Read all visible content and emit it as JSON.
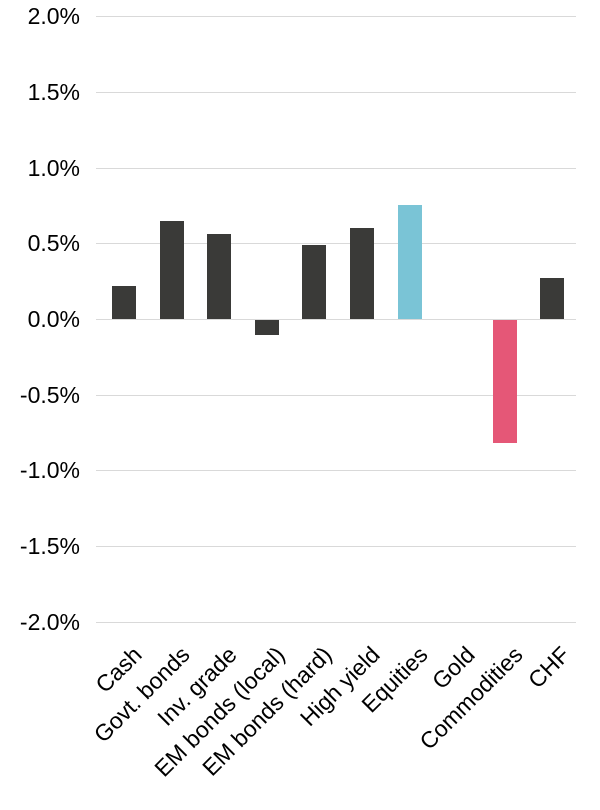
{
  "chart_data": {
    "type": "bar",
    "title": "",
    "xlabel": "",
    "ylabel": "",
    "categories": [
      "Cash",
      "Govt. bonds",
      "Inv. grade",
      "EM bonds (local)",
      "EM bonds (hard)",
      "High yield",
      "Equities",
      "Gold",
      "Commodities",
      "CHF"
    ],
    "values": [
      0.22,
      0.65,
      0.56,
      -0.1,
      0.49,
      0.6,
      0.75,
      0.0,
      -0.81,
      0.27
    ],
    "value_unit": "%",
    "ylim": [
      -2.0,
      2.0
    ],
    "yticks": [
      2.0,
      1.5,
      1.0,
      0.5,
      0.0,
      -0.5,
      -1.0,
      -1.5,
      -2.0
    ],
    "ytick_labels": [
      "2.0%",
      "1.5%",
      "1.0%",
      "0.5%",
      "0.0%",
      "-0.5%",
      "-1.0%",
      "-1.5%",
      "-2.0%"
    ],
    "grid": "horizontal",
    "legend": "none",
    "bar_colors": [
      "#3a3a38",
      "#3a3a38",
      "#3a3a38",
      "#3a3a38",
      "#3a3a38",
      "#3a3a38",
      "#7ac4d6",
      "#3a3a38",
      "#e55777",
      "#3a3a38"
    ],
    "colors": {
      "bar_default": "#3a3a38",
      "bar_highlight_positive": "#7ac4d6",
      "bar_highlight_negative": "#e55777",
      "gridline": "#d9d9d9",
      "text": "#000000",
      "background": "#ffffff"
    }
  }
}
